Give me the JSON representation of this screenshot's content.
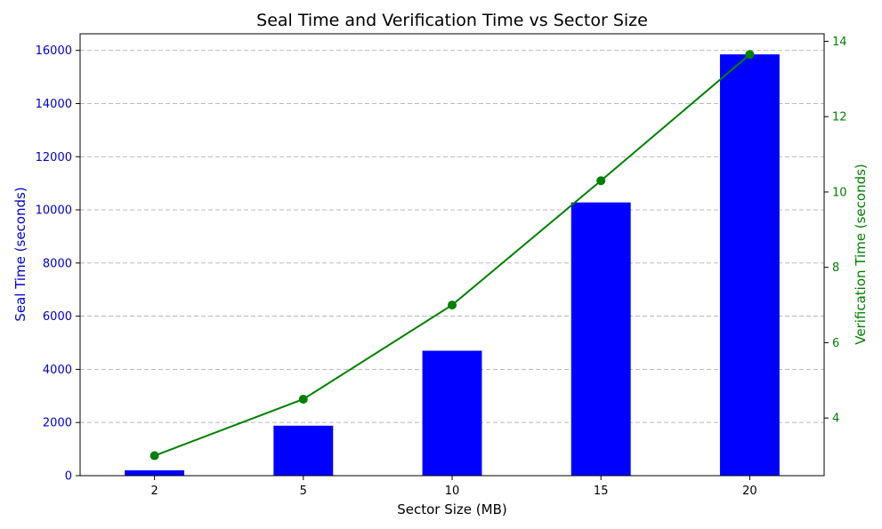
{
  "chart_data": {
    "type": "bar+line",
    "title": "Seal Time and Verification Time vs Sector Size",
    "xlabel": "Sector Size (MB)",
    "categories": [
      "2",
      "5",
      "10",
      "15",
      "20"
    ],
    "series": [
      {
        "axis": "left",
        "type": "bar",
        "ylabel": "Seal Time (seconds)",
        "values": [
          200,
          1880,
          4700,
          10280,
          15850
        ],
        "color": "#0000ff"
      },
      {
        "axis": "right",
        "type": "line",
        "ylabel": "Verification Time (seconds)",
        "values": [
          3.0,
          4.5,
          7.0,
          10.3,
          13.65
        ],
        "color": "#008000"
      }
    ],
    "y_left": {
      "ylim": [
        0,
        16625
      ],
      "ticks": [
        "0",
        "2000",
        "4000",
        "6000",
        "8000",
        "10000",
        "12000",
        "14000",
        "16000"
      ],
      "tick_values": [
        0,
        2000,
        4000,
        6000,
        8000,
        10000,
        12000,
        14000,
        16000
      ],
      "color": "#0000cc"
    },
    "y_right": {
      "ylim": [
        2.47,
        14.2
      ],
      "ticks": [
        "4",
        "6",
        "8",
        "10",
        "12",
        "14"
      ],
      "tick_values": [
        4,
        6,
        8,
        10,
        12,
        14
      ],
      "color": "#008000"
    },
    "grid": "horizontal dashed",
    "legend": "none"
  }
}
